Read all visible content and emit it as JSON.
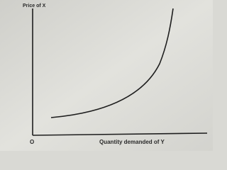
{
  "y_axis_label": "Price of X",
  "x_axis_label": "Quantity demanded of Y",
  "origin_label": "O"
}
